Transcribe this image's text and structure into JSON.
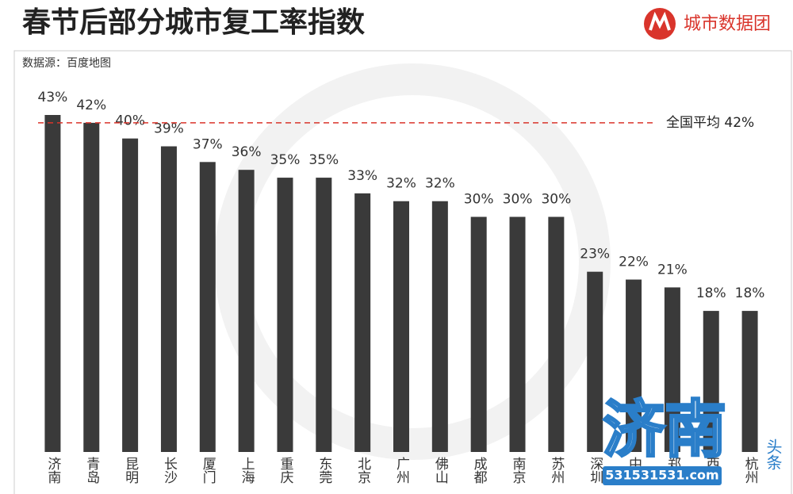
{
  "chart_data": {
    "type": "bar",
    "title": "春节后部分城市复工率指数",
    "brand": "城市数据团",
    "source": "数据源：百度地图",
    "categories": [
      "济南",
      "青岛",
      "昆明",
      "长沙",
      "厦门",
      "上海",
      "重庆",
      "东莞",
      "北京",
      "广州",
      "佛山",
      "成都",
      "南京",
      "苏州",
      "深圳",
      "中山",
      "郑州",
      "西安",
      "杭州"
    ],
    "values": [
      43,
      42,
      40,
      39,
      37,
      36,
      35,
      35,
      33,
      32,
      32,
      30,
      30,
      30,
      23,
      22,
      21,
      18,
      18
    ],
    "value_labels": [
      "43%",
      "42%",
      "40%",
      "39%",
      "37%",
      "36%",
      "35%",
      "35%",
      "33%",
      "32%",
      "32%",
      "30%",
      "30%",
      "30%",
      "23%",
      "22%",
      "21%",
      "18%",
      "18%"
    ],
    "color": "#3a3a3a",
    "reference": {
      "value": 42,
      "label": "全国平均 42%",
      "color": "#d9342b"
    },
    "watermark": {
      "text": "济南",
      "side": "头条",
      "url": "531531531.com"
    }
  }
}
